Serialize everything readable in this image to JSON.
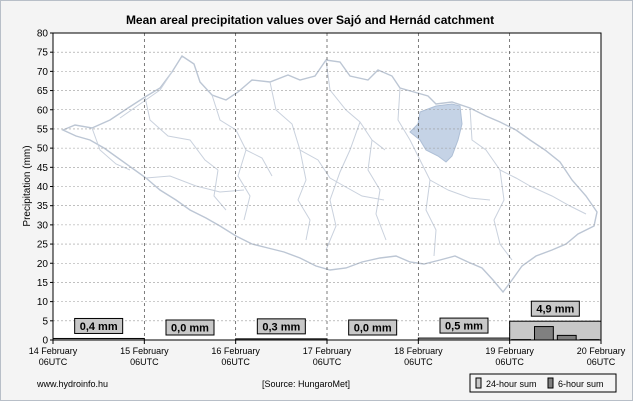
{
  "chart_data": {
    "type": "bar",
    "title": "Mean areal precipitation values over Sajó and Hernád catchment",
    "ylabel": "Precipitation (mm)",
    "xlabel": "",
    "ylim": [
      0,
      80
    ],
    "yticks": [
      0,
      5,
      10,
      15,
      20,
      25,
      30,
      35,
      40,
      45,
      50,
      55,
      60,
      65,
      70,
      75,
      80
    ],
    "x_ticks": [
      {
        "date": "14 February",
        "time": "06UTC"
      },
      {
        "date": "15 February",
        "time": "06UTC"
      },
      {
        "date": "16 February",
        "time": "06UTC"
      },
      {
        "date": "17 February",
        "time": "06UTC"
      },
      {
        "date": "18 February",
        "time": "06UTC"
      },
      {
        "date": "19 February",
        "time": "06UTC"
      },
      {
        "date": "20 February",
        "time": "06UTC"
      }
    ],
    "series": [
      {
        "name": "24-hour sum",
        "values": [
          0.4,
          0.0,
          0.3,
          0.0,
          0.5,
          4.9
        ]
      },
      {
        "name": "6-hour sum",
        "values": [
          0,
          0,
          0,
          0,
          0,
          0,
          0,
          0,
          0,
          0,
          0,
          0,
          0,
          0,
          0,
          0,
          0,
          0,
          0,
          0,
          0.1,
          3.5,
          1.2,
          0.1
        ]
      }
    ],
    "value_labels": [
      "0,4 mm",
      "0,0 mm",
      "0,3 mm",
      "0,0 mm",
      "0,5 mm",
      "4,9 mm"
    ],
    "grid": true,
    "legend": "bottom-right"
  },
  "footer": {
    "website": "www.hydroinfo.hu",
    "source": "[Source: HungaroMet]"
  },
  "colors": {
    "background": "#f4f4f4",
    "plot_background": "#ffffff",
    "daily_bar": "#c8c8c8",
    "sixhour_bar": "#808080",
    "label_box": "#c8c8c8",
    "catchment_fill": "#c5d3e6",
    "map_outline": "#bcc6d4"
  }
}
